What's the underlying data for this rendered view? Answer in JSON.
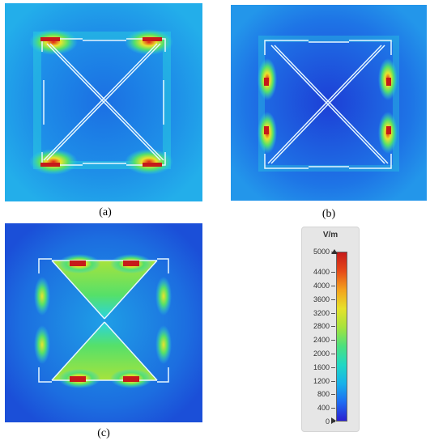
{
  "captions": {
    "a": "(a)",
    "b": "(b)",
    "c": "(c)"
  },
  "legend": {
    "unit": "V/m",
    "ticks": [
      "5000",
      "4400",
      "4000",
      "3600",
      "3200",
      "2800",
      "2400",
      "2000",
      "1600",
      "1200",
      "800",
      "400",
      "0"
    ],
    "tick_values": [
      5000,
      4400,
      4000,
      3600,
      3200,
      2800,
      2400,
      2000,
      1600,
      1200,
      800,
      400,
      0
    ],
    "max": 5000,
    "min": 0,
    "colors": [
      "#2a1fd1",
      "#1e6cf2",
      "#17b2ea",
      "#20d8c4",
      "#4ce07d",
      "#a6e33c",
      "#e6e12a",
      "#f4a21d",
      "#e64a19",
      "#c61a1a"
    ]
  },
  "field_colors": {
    "background": "#1f9ee6",
    "deep_blue": "#1f3ad8",
    "cyan": "#2ad4e0",
    "green": "#55e06a",
    "yellow": "#e9e52c",
    "red": "#e42316"
  }
}
